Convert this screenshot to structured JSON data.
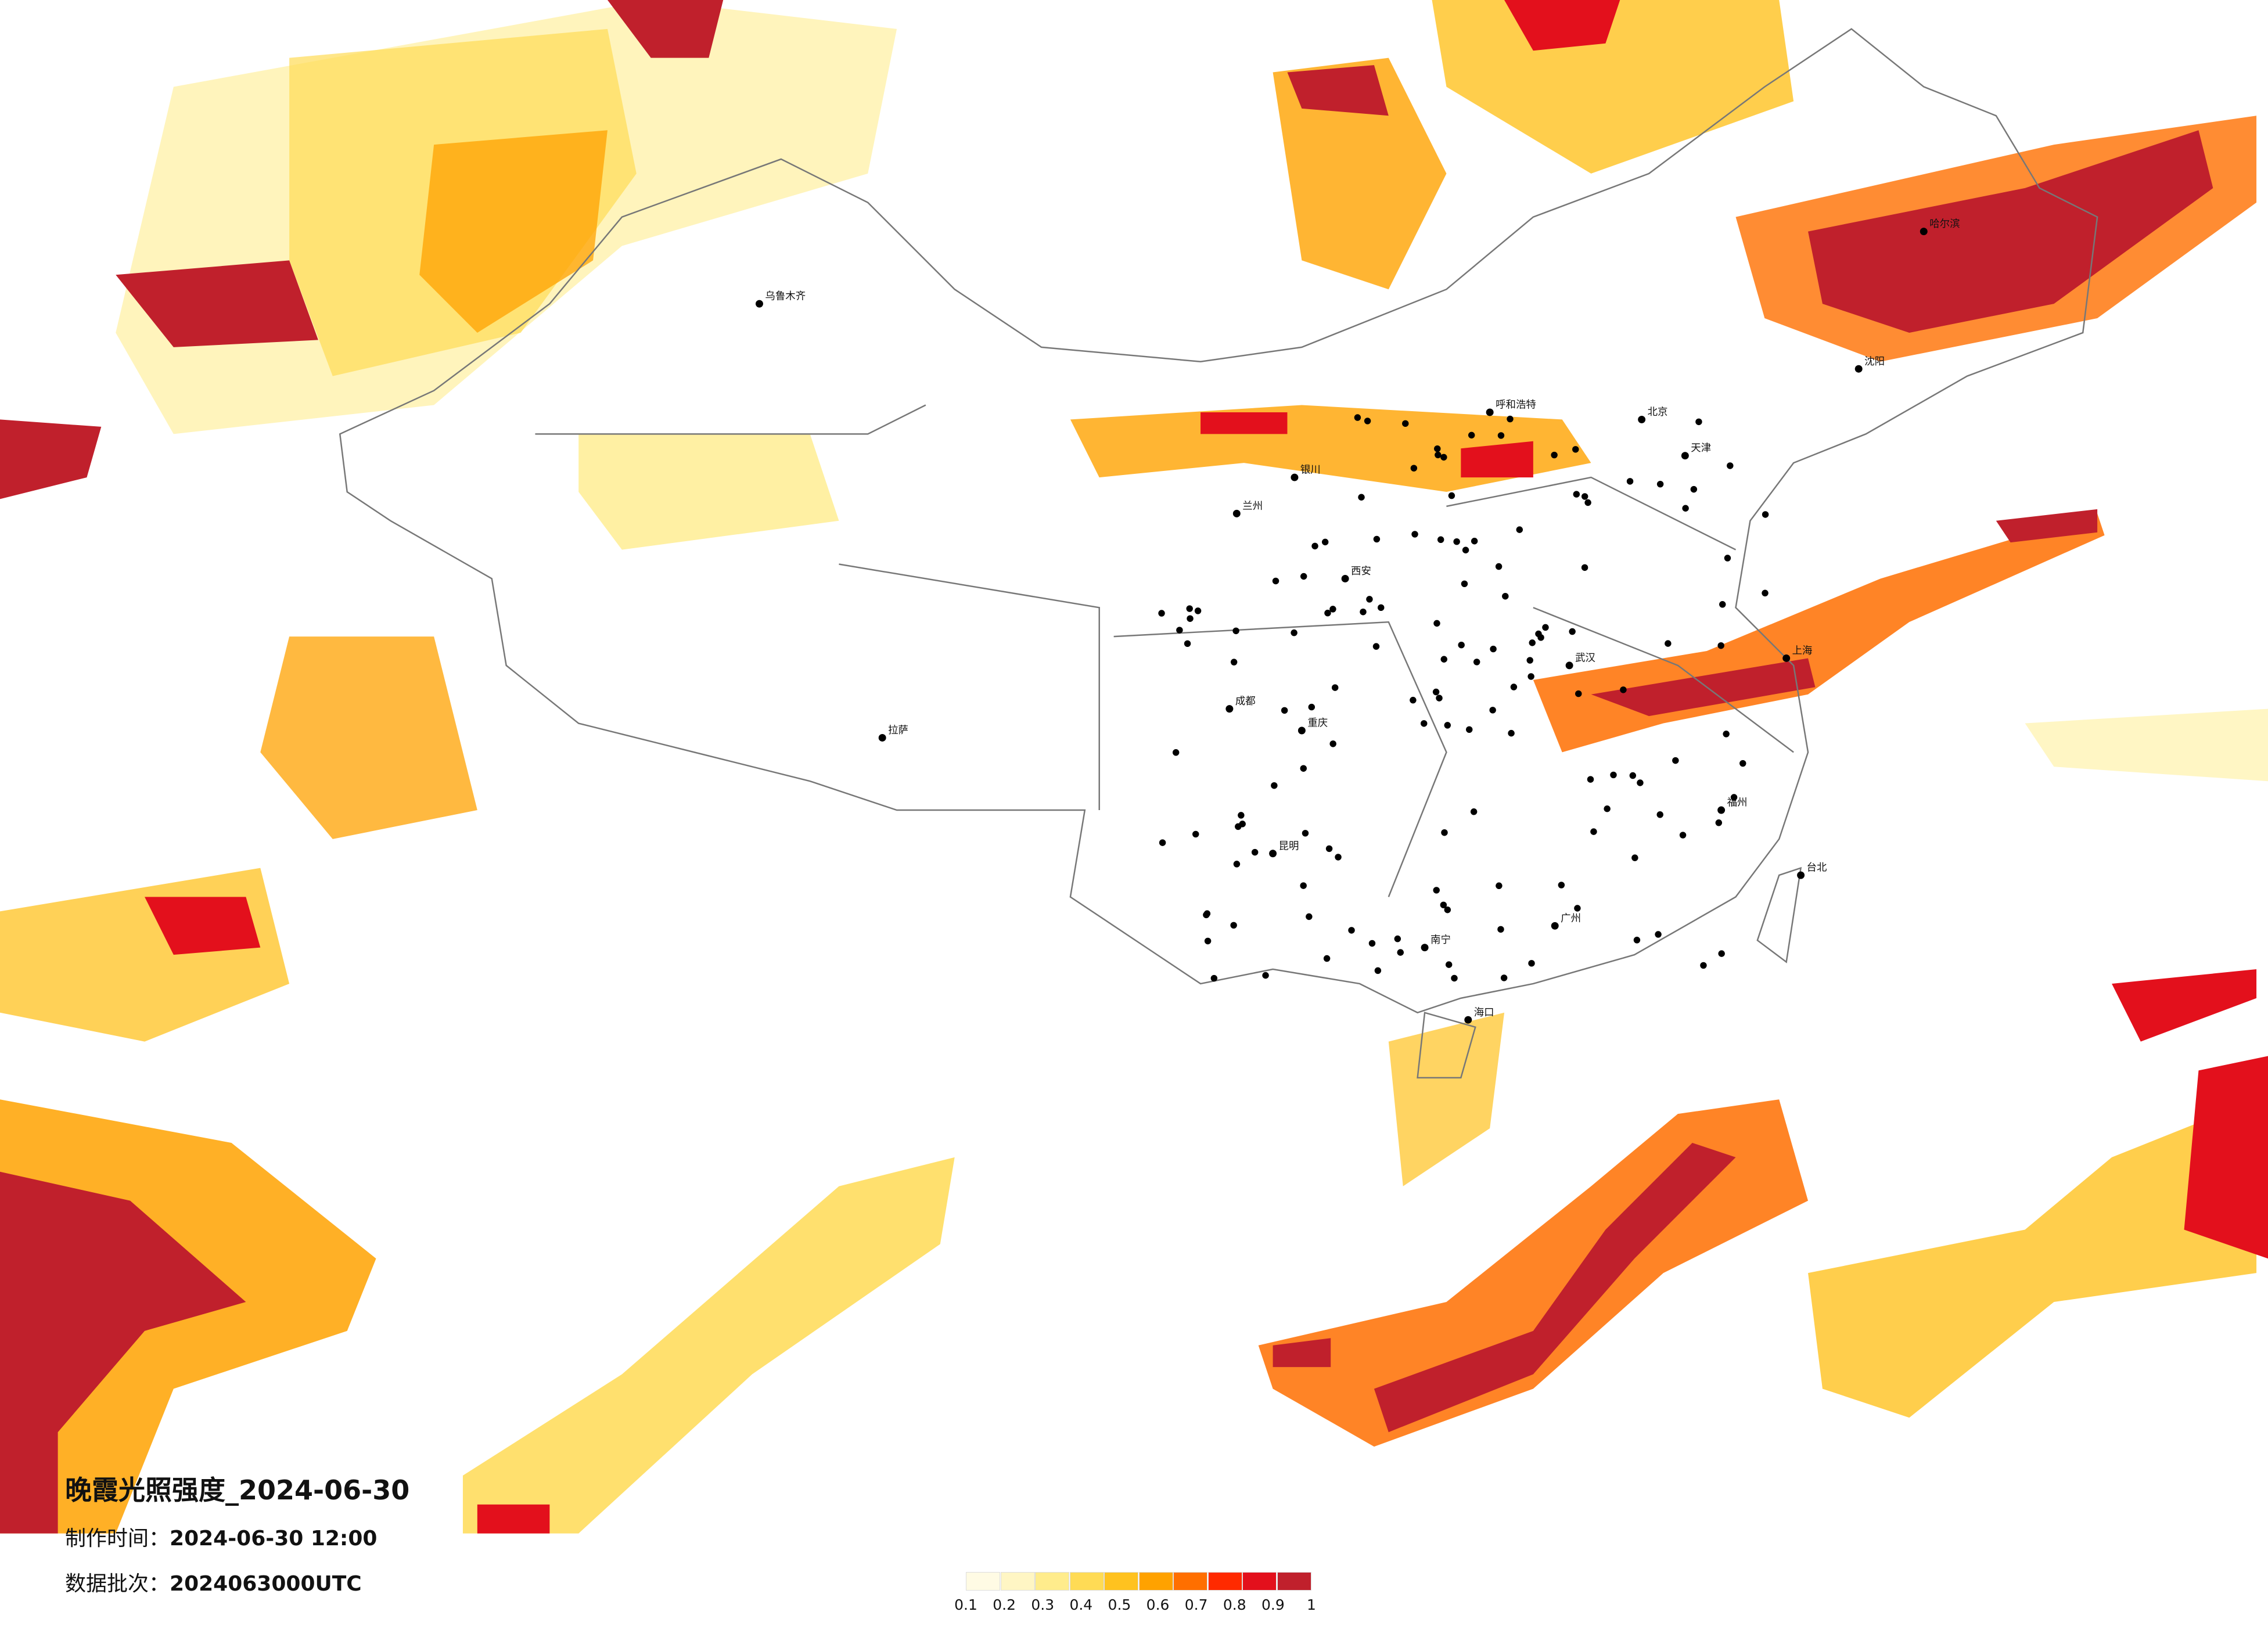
{
  "header": {
    "title": "晚霞光照强度_2024-06-30",
    "made_time": {
      "label": "制作时间：",
      "value": "2024-06-30 12:00"
    },
    "batch": {
      "label": "数据批次：",
      "value": "2024063000UTC"
    }
  },
  "legend": {
    "colors": [
      "#fffbe4",
      "#fff6c4",
      "#ffec8c",
      "#ffdb55",
      "#ffc21f",
      "#ffa200",
      "#ff6f00",
      "#ff2a00",
      "#e3101c",
      "#c0202c"
    ],
    "labels": [
      "0.1",
      "0.2",
      "0.3",
      "0.4",
      "0.5",
      "0.6",
      "0.7",
      "0.8",
      "0.9",
      "1"
    ]
  },
  "cities": [
    "北京",
    "天津",
    "上海",
    "广州",
    "武汉",
    "成都",
    "重庆",
    "西安",
    "兰州",
    "拉萨",
    "乌鲁木齐",
    "哈尔滨",
    "沈阳",
    "昆明",
    "南宁",
    "福州",
    "台北",
    "海口",
    "呼和浩特",
    "银川"
  ]
}
